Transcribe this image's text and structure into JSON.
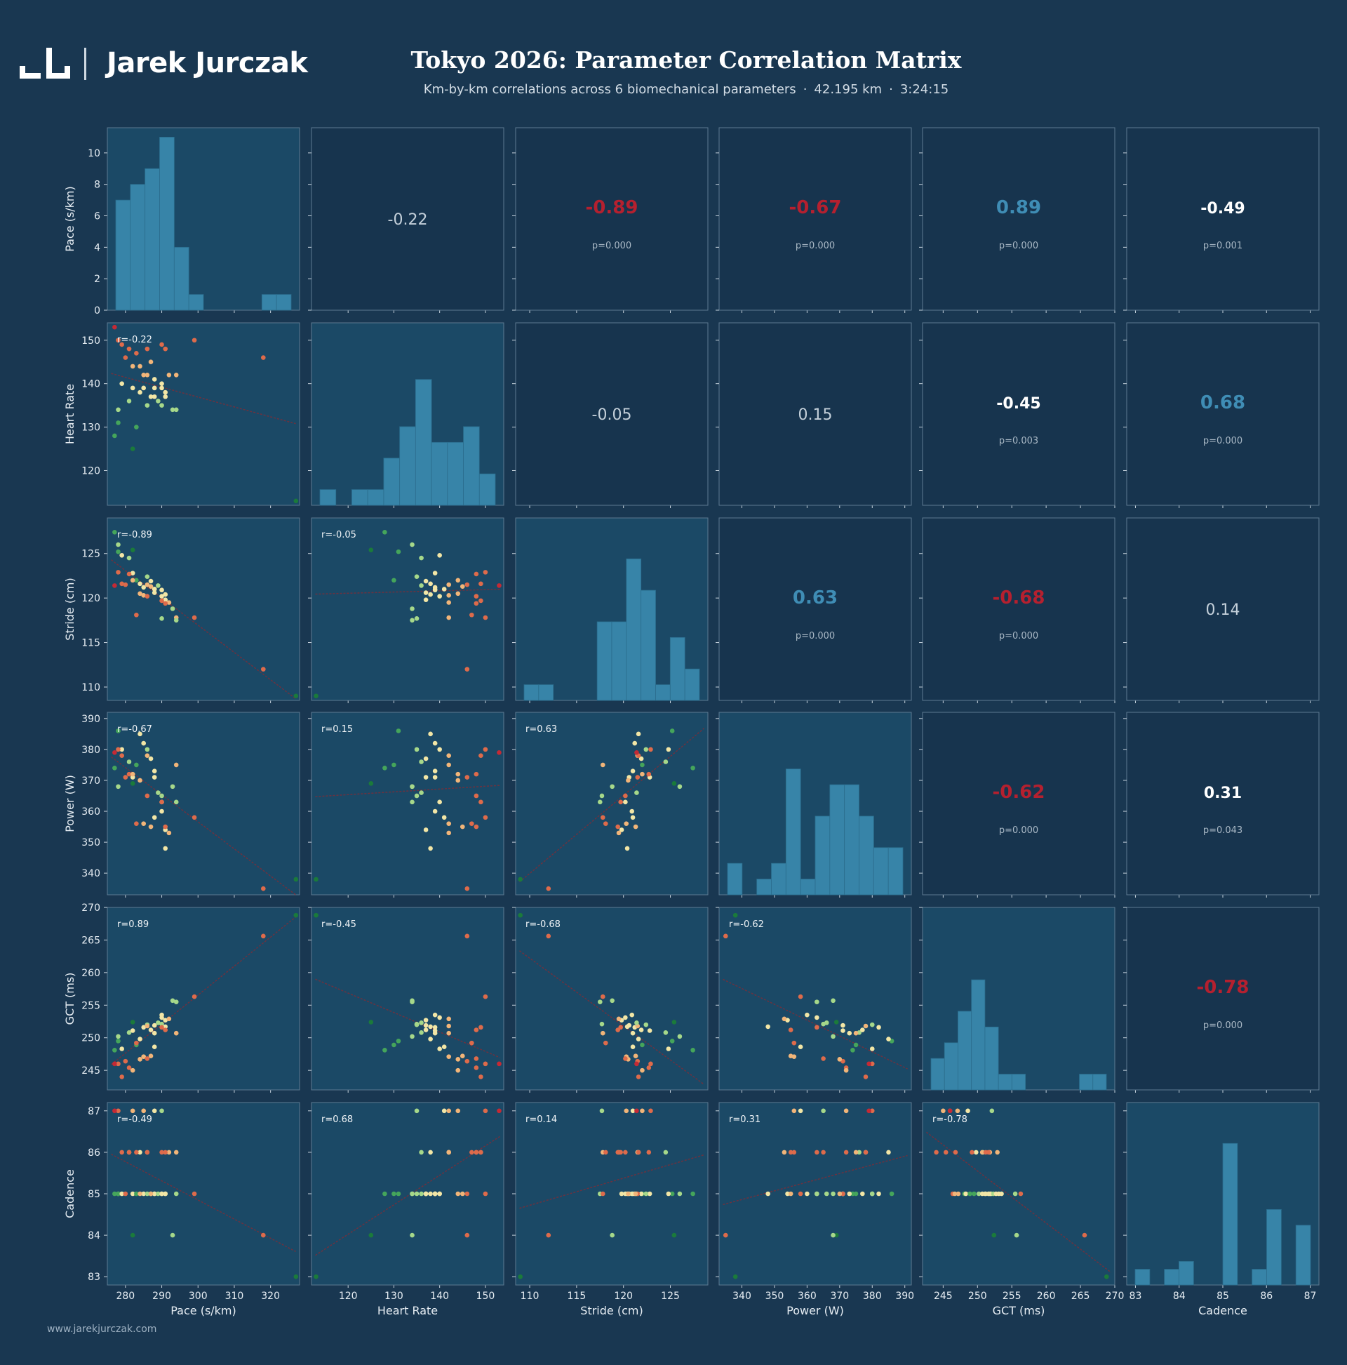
{
  "header": {
    "logo_name": "Jarek Jurczak",
    "title": "Tokyo 2026: Parameter Correlation Matrix",
    "subtitle_text": "Km-by-km correlations across 6 biomechanical parameters",
    "distance": "42.195 km",
    "time": "3:24:15"
  },
  "footer": {
    "url": "www.jarekjurczak.com"
  },
  "colors": {
    "background": "#193751",
    "panel": "#1b4966",
    "empty_panel": "#17344e",
    "histogram": "#3784a8",
    "positive_strong": "#3f8db5",
    "negative_strong": "#b5202f",
    "neutral": "#ffffff",
    "trend": "#7a2e3a",
    "point_scale": [
      "#1b7a3b",
      "#45a55b",
      "#a6d88a",
      "#f2e6a6",
      "#f1b579",
      "#de6b4b",
      "#c42a35"
    ]
  },
  "chart_data": {
    "type": "scatter",
    "variables": [
      "Pace (s/km)",
      "Heart Rate",
      "Stride (cm)",
      "Power (W)",
      "GCT (ms)",
      "Cadence"
    ],
    "ranges": [
      [
        275,
        328
      ],
      [
        112,
        154
      ],
      [
        108.5,
        129
      ],
      [
        333,
        392
      ],
      [
        242,
        270
      ],
      [
        82.8,
        87.2
      ]
    ],
    "ticks": [
      [
        280,
        290,
        300,
        310,
        320
      ],
      [
        120,
        130,
        140,
        150
      ],
      [
        110,
        115,
        120,
        125
      ],
      [
        340,
        350,
        360,
        370,
        380,
        390
      ],
      [
        245,
        250,
        255,
        260,
        265,
        270
      ],
      [
        83,
        84,
        85,
        86,
        87
      ]
    ],
    "histogram_ylim": [
      0,
      11.6
    ],
    "histogram_yticks": [
      0,
      2,
      4,
      6,
      8,
      10
    ],
    "histograms": [
      [
        7,
        8,
        9,
        11,
        4,
        1,
        0,
        0,
        0,
        0,
        1,
        1
      ],
      [
        1,
        0,
        1,
        1,
        3,
        5,
        8,
        4,
        4,
        5,
        2
      ],
      [
        1,
        1,
        0,
        0,
        0,
        5,
        5,
        9,
        7,
        1,
        4,
        2
      ],
      [
        2,
        0,
        1,
        2,
        8,
        1,
        5,
        7,
        7,
        5,
        3,
        3
      ],
      [
        2,
        3,
        5,
        7,
        4,
        1,
        1,
        0,
        0,
        0,
        0,
        1,
        1
      ],
      [
        1,
        0,
        1,
        1.5,
        0,
        0,
        9,
        0,
        1,
        4.8,
        0,
        3.8
      ]
    ],
    "correlations": [
      {
        "i": 0,
        "j": 1,
        "r": "-0.22",
        "p": ""
      },
      {
        "i": 0,
        "j": 2,
        "r": "-0.89",
        "p": "p=0.000"
      },
      {
        "i": 0,
        "j": 3,
        "r": "-0.67",
        "p": "p=0.000"
      },
      {
        "i": 0,
        "j": 4,
        "r": "0.89",
        "p": "p=0.000"
      },
      {
        "i": 0,
        "j": 5,
        "r": "-0.49",
        "p": "p=0.001"
      },
      {
        "i": 1,
        "j": 2,
        "r": "-0.05",
        "p": ""
      },
      {
        "i": 1,
        "j": 3,
        "r": "0.15",
        "p": ""
      },
      {
        "i": 1,
        "j": 4,
        "r": "-0.45",
        "p": "p=0.003"
      },
      {
        "i": 1,
        "j": 5,
        "r": "0.68",
        "p": "p=0.000"
      },
      {
        "i": 2,
        "j": 3,
        "r": "0.63",
        "p": "p=0.000"
      },
      {
        "i": 2,
        "j": 4,
        "r": "-0.68",
        "p": "p=0.000"
      },
      {
        "i": 2,
        "j": 5,
        "r": "0.14",
        "p": ""
      },
      {
        "i": 3,
        "j": 4,
        "r": "-0.62",
        "p": "p=0.000"
      },
      {
        "i": 3,
        "j": 5,
        "r": "0.31",
        "p": "p=0.043"
      },
      {
        "i": 4,
        "j": 5,
        "r": "-0.78",
        "p": "p=0.000"
      }
    ],
    "km_splits": [
      {
        "km": 1,
        "pace": 277,
        "hr": 128,
        "stride": 127.4,
        "power": 374,
        "gct": 248.1,
        "cadence": 85
      },
      {
        "km": 2,
        "pace": 278,
        "hr": 134,
        "stride": 126.0,
        "power": 368,
        "gct": 250.2,
        "cadence": 85
      },
      {
        "km": 3,
        "pace": 278,
        "hr": 131,
        "stride": 125.2,
        "power": 386,
        "gct": 249.5,
        "cadence": 85
      },
      {
        "km": 4,
        "pace": 279,
        "hr": 140,
        "stride": 124.8,
        "power": 380,
        "gct": 248.3,
        "cadence": 85
      },
      {
        "km": 5,
        "pace": 282,
        "hr": 125,
        "stride": 125.4,
        "power": 369,
        "gct": 252.4,
        "cadence": 84
      },
      {
        "km": 6,
        "pace": 281,
        "hr": 136,
        "stride": 124.5,
        "power": 376,
        "gct": 250.8,
        "cadence": 86
      },
      {
        "km": 7,
        "pace": 282,
        "hr": 139,
        "stride": 122.8,
        "power": 371,
        "gct": 251.1,
        "cadence": 85
      },
      {
        "km": 8,
        "pace": 283,
        "hr": 130,
        "stride": 122.0,
        "power": 375,
        "gct": 248.9,
        "cadence": 85
      },
      {
        "km": 9,
        "pace": 284,
        "hr": 138,
        "stride": 121.6,
        "power": 385,
        "gct": 249.8,
        "cadence": 86
      },
      {
        "km": 10,
        "pace": 285,
        "hr": 139,
        "stride": 121.2,
        "power": 382,
        "gct": 251.6,
        "cadence": 85
      },
      {
        "km": 11,
        "pace": 286,
        "hr": 135,
        "stride": 122.4,
        "power": 380,
        "gct": 252.0,
        "cadence": 85
      },
      {
        "km": 12,
        "pace": 286,
        "hr": 142,
        "stride": 121.5,
        "power": 378,
        "gct": 251.8,
        "cadence": 86
      },
      {
        "km": 13,
        "pace": 287,
        "hr": 137,
        "stride": 121.9,
        "power": 377,
        "gct": 251.2,
        "cadence": 85
      },
      {
        "km": 14,
        "pace": 288,
        "hr": 139,
        "stride": 121.0,
        "power": 373,
        "gct": 250.7,
        "cadence": 85
      },
      {
        "km": 15,
        "pace": 288,
        "hr": 137,
        "stride": 120.6,
        "power": 371,
        "gct": 251.9,
        "cadence": 85
      },
      {
        "km": 16,
        "pace": 289,
        "hr": 136,
        "stride": 121.4,
        "power": 366,
        "gct": 252.3,
        "cadence": 85
      },
      {
        "km": 17,
        "pace": 290,
        "hr": 140,
        "stride": 120.2,
        "power": 363,
        "gct": 253.1,
        "cadence": 85
      },
      {
        "km": 18,
        "pace": 290,
        "hr": 139,
        "stride": 120.9,
        "power": 360,
        "gct": 253.5,
        "cadence": 85
      },
      {
        "km": 19,
        "pace": 291,
        "hr": 137,
        "stride": 119.8,
        "power": 354,
        "gct": 252.7,
        "cadence": 85
      },
      {
        "km": 20,
        "pace": 291,
        "hr": 138,
        "stride": 120.4,
        "power": 348,
        "gct": 251.7,
        "cadence": 85
      },
      {
        "km": 21,
        "pace": 292,
        "hr": 142,
        "stride": 119.5,
        "power": 353,
        "gct": 252.9,
        "cadence": 86
      },
      {
        "km": 22,
        "pace": 293,
        "hr": 134,
        "stride": 118.8,
        "power": 368,
        "gct": 255.7,
        "cadence": 84
      },
      {
        "km": 23,
        "pace": 294,
        "hr": 142,
        "stride": 117.8,
        "power": 375,
        "gct": 250.7,
        "cadence": 86
      },
      {
        "km": 24,
        "pace": 294,
        "hr": 134,
        "stride": 117.5,
        "power": 363,
        "gct": 255.5,
        "cadence": 85
      },
      {
        "km": 25,
        "pace": 290,
        "hr": 135,
        "stride": 117.7,
        "power": 365,
        "gct": 252.1,
        "cadence": 87
      },
      {
        "km": 26,
        "pace": 278,
        "hr": 150,
        "stride": 122.9,
        "power": 380,
        "gct": 246.0,
        "cadence": 87
      },
      {
        "km": 27,
        "pace": 279,
        "hr": 149,
        "stride": 121.6,
        "power": 378,
        "gct": 244.0,
        "cadence": 86
      },
      {
        "km": 28,
        "pace": 280,
        "hr": 146,
        "stride": 121.5,
        "power": 371,
        "gct": 246.4,
        "cadence": 85
      },
      {
        "km": 29,
        "pace": 281,
        "hr": 148,
        "stride": 122.7,
        "power": 372,
        "gct": 245.4,
        "cadence": 86
      },
      {
        "km": 30,
        "pace": 282,
        "hr": 144,
        "stride": 122.0,
        "power": 372,
        "gct": 245.0,
        "cadence": 87
      },
      {
        "km": 31,
        "pace": 283,
        "hr": 147,
        "stride": 118.1,
        "power": 356,
        "gct": 249.2,
        "cadence": 86
      },
      {
        "km": 32,
        "pace": 284,
        "hr": 144,
        "stride": 120.5,
        "power": 370,
        "gct": 246.7,
        "cadence": 85
      },
      {
        "km": 33,
        "pace": 285,
        "hr": 142,
        "stride": 120.3,
        "power": 356,
        "gct": 247.1,
        "cadence": 87
      },
      {
        "km": 34,
        "pace": 286,
        "hr": 148,
        "stride": 120.2,
        "power": 365,
        "gct": 246.8,
        "cadence": 86
      },
      {
        "km": 35,
        "pace": 287,
        "hr": 145,
        "stride": 121.3,
        "power": 355,
        "gct": 247.2,
        "cadence": 85
      },
      {
        "km": 36,
        "pace": 288,
        "hr": 141,
        "stride": 121.0,
        "power": 358,
        "gct": 248.6,
        "cadence": 87
      },
      {
        "km": 37,
        "pace": 290,
        "hr": 149,
        "stride": 119.7,
        "power": 363,
        "gct": 251.6,
        "cadence": 86
      },
      {
        "km": 38,
        "pace": 291,
        "hr": 148,
        "stride": 119.4,
        "power": 355,
        "gct": 251.2,
        "cadence": 86
      },
      {
        "km": 39,
        "pace": 299,
        "hr": 150,
        "stride": 117.8,
        "power": 358,
        "gct": 256.3,
        "cadence": 85
      },
      {
        "km": 40,
        "pace": 318,
        "hr": 146,
        "stride": 112.0,
        "power": 335,
        "gct": 265.6,
        "cadence": 84
      },
      {
        "km": 41,
        "pace": 327,
        "hr": 113,
        "stride": 109.0,
        "power": 338,
        "gct": 268.8,
        "cadence": 83
      },
      {
        "km": 42,
        "pace": 277,
        "hr": 153,
        "stride": 121.4,
        "power": 379,
        "gct": 246.0,
        "cadence": 87
      }
    ]
  }
}
